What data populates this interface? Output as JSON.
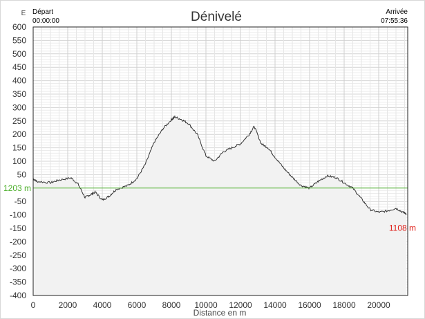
{
  "chart_data": {
    "type": "area",
    "title": "Dénivelé",
    "xlabel": "Distance en m",
    "ylabel": "E",
    "xlim": [
      0,
      21680
    ],
    "ylim": [
      -400,
      600
    ],
    "xticks": [
      0,
      2000,
      4000,
      6000,
      8000,
      10000,
      12000,
      14000,
      16000,
      18000,
      20000
    ],
    "yticks": [
      600,
      550,
      500,
      450,
      400,
      350,
      300,
      250,
      200,
      150,
      100,
      50,
      0,
      -50,
      -100,
      -150,
      -200,
      -250,
      -300,
      -350,
      -400
    ],
    "ytick_labels": [
      "600",
      "550",
      "500",
      "450",
      "400",
      "350",
      "300",
      "250",
      "200",
      "150",
      "100",
      "50",
      "",
      "-50",
      "-100",
      "-150",
      "-200",
      "-250",
      "-300",
      "-350",
      "-400"
    ],
    "grid": true,
    "start": {
      "label": "Départ",
      "time": "00:00:00"
    },
    "end": {
      "label": "Arrivée",
      "time": "07:55:36"
    },
    "reference_line": {
      "y": 0,
      "label": "1203 m",
      "color": "#4caf2a"
    },
    "end_label": {
      "text": "1108 m",
      "color": "#e0201a"
    },
    "fill_color": "#f2f2f2",
    "line_color": "#333333",
    "series": [
      {
        "x": [
          0,
          200,
          1000,
          1500,
          2200,
          2600,
          3000,
          3300,
          3600,
          4000,
          4400,
          4800,
          5500,
          6000,
          6500,
          7000,
          7500,
          8000,
          8200,
          8600,
          9000,
          9500,
          10000,
          10500,
          11000,
          11500,
          12000,
          12500,
          12800,
          13200,
          13600,
          14000,
          14500,
          15000,
          15500,
          16000,
          16500,
          17000,
          17500,
          18000,
          18500,
          19000,
          19500,
          20000,
          20500,
          21000,
          21400,
          21600
        ],
        "y": [
          35,
          25,
          20,
          30,
          38,
          15,
          -35,
          -25,
          -15,
          -45,
          -30,
          -5,
          10,
          35,
          90,
          170,
          220,
          255,
          265,
          255,
          240,
          200,
          120,
          100,
          135,
          150,
          165,
          200,
          230,
          165,
          150,
          115,
          75,
          40,
          10,
          0,
          25,
          45,
          40,
          20,
          0,
          -40,
          -80,
          -90,
          -85,
          -75,
          -90,
          -95
        ]
      }
    ]
  }
}
